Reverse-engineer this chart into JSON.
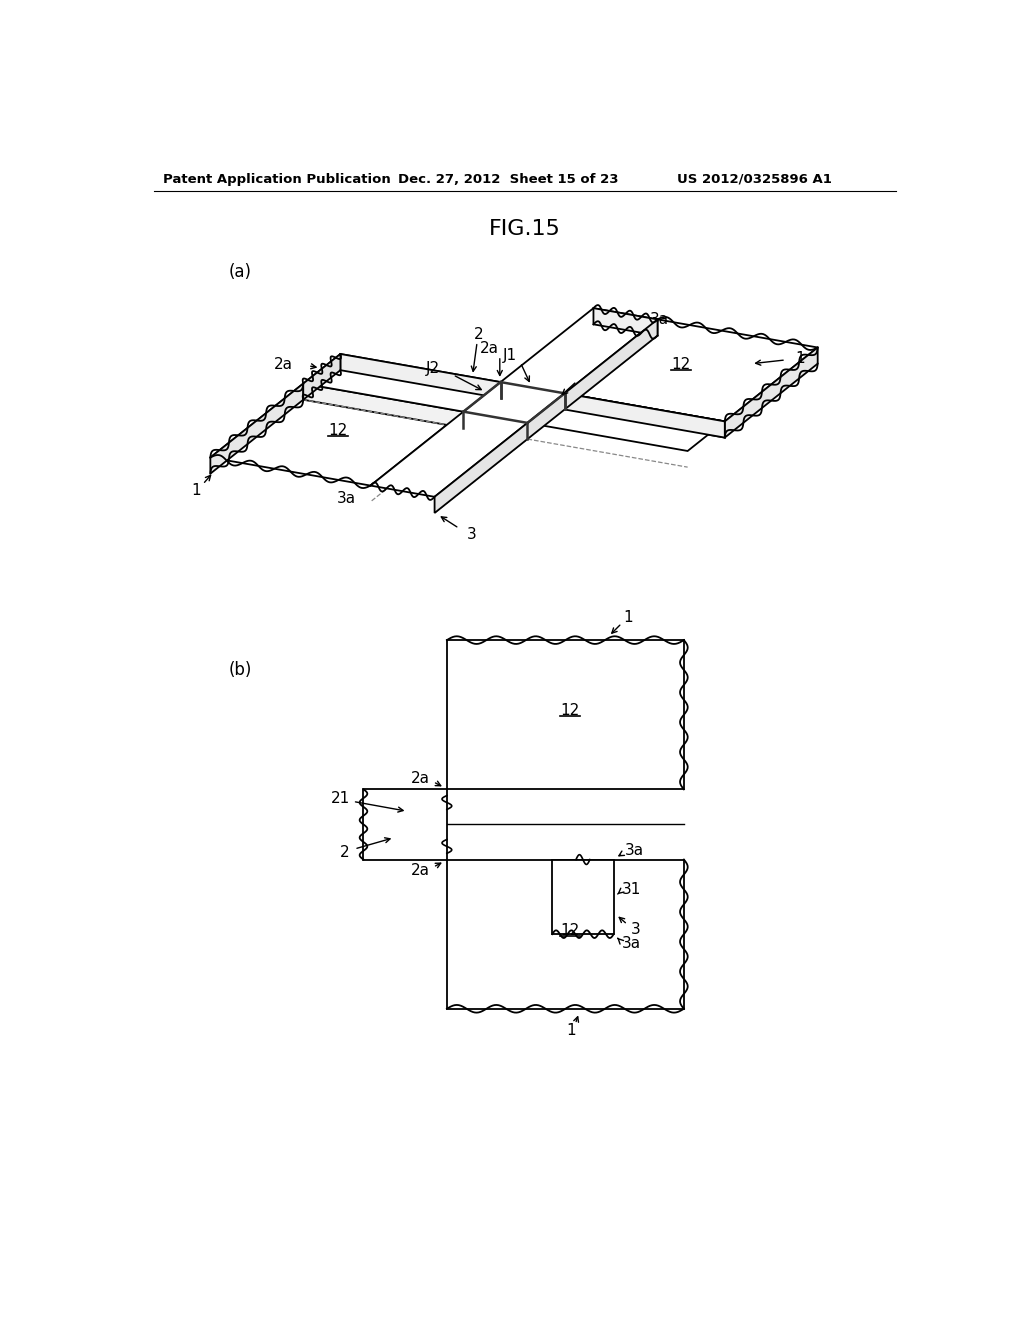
{
  "header_left": "Patent Application Publication",
  "header_mid": "Dec. 27, 2012  Sheet 15 of 23",
  "header_right": "US 2012/0325896 A1",
  "title": "FIG.15",
  "label_a": "(a)",
  "label_b": "(b)",
  "bg_color": "#ffffff",
  "lc": "#000000",
  "lw": 1.3
}
